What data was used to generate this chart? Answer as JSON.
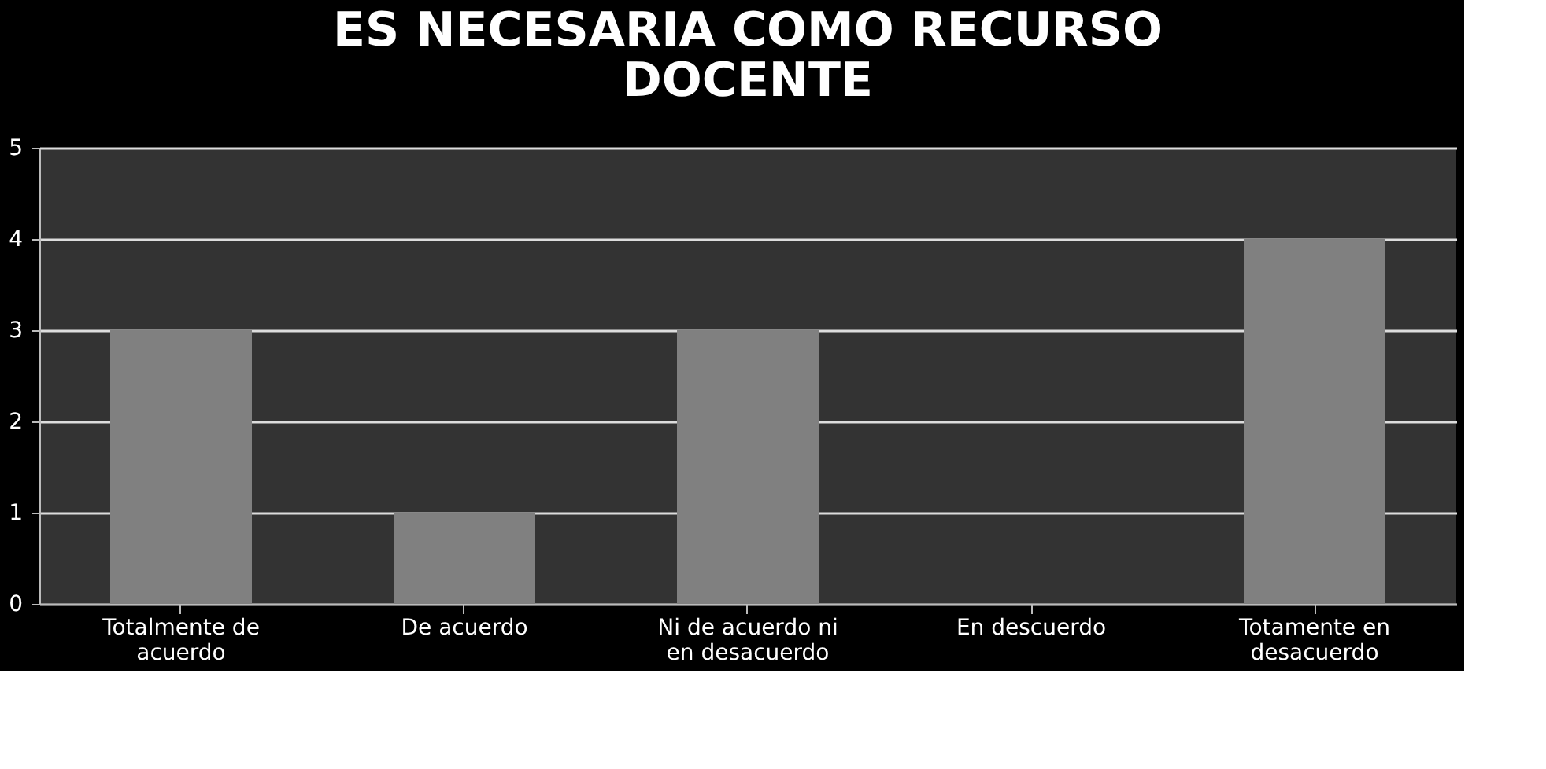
{
  "chart_data": {
    "type": "bar",
    "title": "ES NECESARIA COMO RECURSO DOCENTE",
    "categories": [
      "Totalmente de acuerdo",
      "De acuerdo",
      "Ni de acuerdo ni en desacuerdo",
      "En descuerdo",
      "Totamente en desacuerdo"
    ],
    "values": [
      3,
      1,
      3,
      0,
      4
    ],
    "color": "#808080",
    "ylim": [
      0,
      5
    ],
    "yticks": [
      0,
      1,
      2,
      3,
      4,
      5
    ],
    "grid": "y"
  }
}
